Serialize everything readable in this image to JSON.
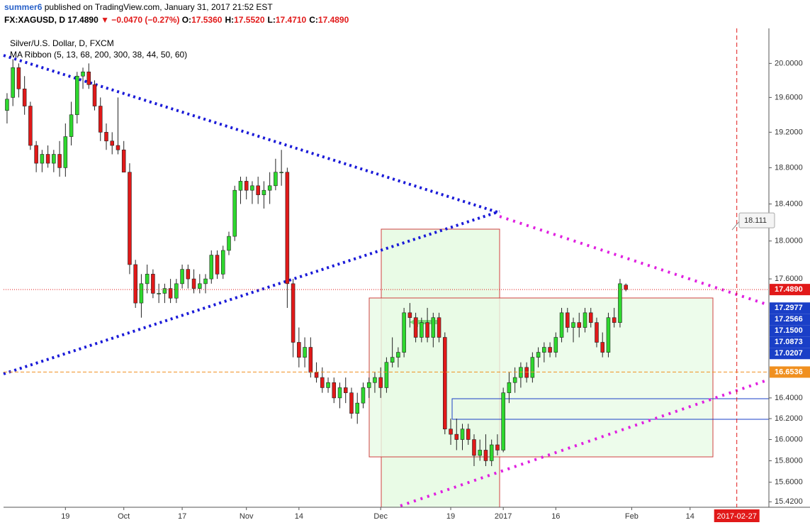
{
  "header": {
    "author": "summer6",
    "published": "published on TradingView.com, January 31, 2017 21:52 EST",
    "symbol": "FX:XAGUSD, D",
    "last": "17.4890",
    "change": "▼ −0.0470 (−0.27%)",
    "ohlc": [
      {
        "key": "O:",
        "value": "17.5360"
      },
      {
        "key": "H:",
        "value": "17.5520"
      },
      {
        "key": "L:",
        "value": "17.4710"
      },
      {
        "key": "C:",
        "value": "17.4890"
      }
    ]
  },
  "chart_data": {
    "type": "candlestick",
    "title": "Silver/U.S. Dollar, D, FXCM",
    "indicator": "MA Ribbon (5, 13, 68, 200, 300, 38, 44, 50, 60)",
    "up_color": "#2ed82e",
    "down_color": "#e11919",
    "log_scale": true,
    "grid": false,
    "xlim": [
      -0.6,
      130.5
    ],
    "ylim": [
      15.37,
      20.42
    ],
    "xticks": [
      {
        "value": 10,
        "label": "19"
      },
      {
        "value": 20,
        "label": "Oct"
      },
      {
        "value": 30,
        "label": "17"
      },
      {
        "value": 41,
        "label": "Nov"
      },
      {
        "value": 50,
        "label": "14"
      },
      {
        "value": 64,
        "label": "Dec"
      },
      {
        "value": 76,
        "label": "19"
      },
      {
        "value": 85,
        "label": "2017"
      },
      {
        "value": 94,
        "label": "16"
      },
      {
        "value": 107,
        "label": "Feb"
      },
      {
        "value": 117,
        "label": "14"
      }
    ],
    "yticks": [
      {
        "value": 20.0,
        "label": "20.0000"
      },
      {
        "value": 19.6,
        "label": "19.6000"
      },
      {
        "value": 19.2,
        "label": "19.2000"
      },
      {
        "value": 18.8,
        "label": "18.8000"
      },
      {
        "value": 18.4,
        "label": "18.4000"
      },
      {
        "value": 18.0,
        "label": "18.0000"
      },
      {
        "value": 17.6,
        "label": "17.6000"
      },
      {
        "value": 16.4,
        "label": "16.4000"
      },
      {
        "value": 16.2,
        "label": "16.2000"
      },
      {
        "value": 16.0,
        "label": "16.0000"
      },
      {
        "value": 15.8,
        "label": "15.8000"
      },
      {
        "value": 15.6,
        "label": "15.6000"
      },
      {
        "value": 15.42,
        "label": "15.4200"
      }
    ],
    "open": [
      19.45,
      19.6,
      19.95,
      19.7,
      19.5,
      19.05,
      18.85,
      18.95,
      18.85,
      18.95,
      18.8,
      19.15,
      19.4,
      19.85,
      19.9,
      19.75,
      19.5,
      19.2,
      19.1,
      19.05,
      19.0,
      18.75,
      17.75,
      17.35,
      17.55,
      17.65,
      17.45,
      17.45,
      17.5,
      17.4,
      17.55,
      17.7,
      17.6,
      17.5,
      17.55,
      17.6,
      17.85,
      17.65,
      17.9,
      18.05,
      18.55,
      18.65,
      18.55,
      18.6,
      18.5,
      18.55,
      18.6,
      18.75,
      18.75,
      17.55,
      16.95,
      16.8,
      16.9,
      16.65,
      16.6,
      16.5,
      16.55,
      16.4,
      16.5,
      16.45,
      16.25,
      16.35,
      16.5,
      16.55,
      16.6,
      16.5,
      16.75,
      16.8,
      16.85,
      17.25,
      17.2,
      17.0,
      17.15,
      17.0,
      17.2,
      17.0,
      16.1,
      16.05,
      16.0,
      16.1,
      16.0,
      15.85,
      15.9,
      15.8,
      15.95,
      15.9,
      16.45,
      16.55,
      16.6,
      16.7,
      16.6,
      16.8,
      16.85,
      16.9,
      16.85,
      17.0,
      17.25,
      17.1,
      17.15,
      17.1,
      17.25,
      17.15,
      16.95,
      16.85,
      17.2,
      17.15,
      17.536
    ],
    "high": [
      19.65,
      20.05,
      20.0,
      19.85,
      19.55,
      19.1,
      19.0,
      19.05,
      19.0,
      19.1,
      19.3,
      19.55,
      19.9,
      19.95,
      20.0,
      19.8,
      19.6,
      19.3,
      19.2,
      19.6,
      19.1,
      18.85,
      17.8,
      17.65,
      17.75,
      17.7,
      17.55,
      17.55,
      17.6,
      17.6,
      17.75,
      17.75,
      17.7,
      17.65,
      17.65,
      17.9,
      17.9,
      17.95,
      18.1,
      18.6,
      18.7,
      18.7,
      18.65,
      18.7,
      18.65,
      18.75,
      18.9,
      19.0,
      18.8,
      17.6,
      17.1,
      17.0,
      17.0,
      16.75,
      16.7,
      16.6,
      16.6,
      16.55,
      16.6,
      16.5,
      16.45,
      16.55,
      16.6,
      16.65,
      16.7,
      16.8,
      17.0,
      16.9,
      17.3,
      17.35,
      17.25,
      17.2,
      17.3,
      17.25,
      17.25,
      17.05,
      16.2,
      16.2,
      16.15,
      16.15,
      16.05,
      16.0,
      16.05,
      16.0,
      16.05,
      16.5,
      16.65,
      16.7,
      16.75,
      16.75,
      16.85,
      16.9,
      16.95,
      16.95,
      17.05,
      17.3,
      17.3,
      17.2,
      17.25,
      17.3,
      17.3,
      17.2,
      17.05,
      17.25,
      17.3,
      17.6,
      17.552
    ],
    "low": [
      19.3,
      19.5,
      19.6,
      19.4,
      19.0,
      18.75,
      18.75,
      18.8,
      18.75,
      18.7,
      18.7,
      19.05,
      19.3,
      19.7,
      19.7,
      19.45,
      19.1,
      19.0,
      18.95,
      18.95,
      18.75,
      17.65,
      17.3,
      17.2,
      17.45,
      17.4,
      17.35,
      17.35,
      17.35,
      17.35,
      17.5,
      17.5,
      17.45,
      17.45,
      17.45,
      17.55,
      17.6,
      17.6,
      17.85,
      18.0,
      18.4,
      18.45,
      18.4,
      18.4,
      18.35,
      18.4,
      18.55,
      18.6,
      17.3,
      16.8,
      16.7,
      16.7,
      16.6,
      16.55,
      16.45,
      16.45,
      16.35,
      16.3,
      16.35,
      16.2,
      16.15,
      16.3,
      16.4,
      16.45,
      16.4,
      16.45,
      16.7,
      16.7,
      16.8,
      17.1,
      16.95,
      16.95,
      16.95,
      16.9,
      16.95,
      16.05,
      15.95,
      15.9,
      15.9,
      15.95,
      15.75,
      15.8,
      15.75,
      15.75,
      15.85,
      15.88,
      16.35,
      16.45,
      16.5,
      16.55,
      16.55,
      16.7,
      16.75,
      16.8,
      16.8,
      16.95,
      17.05,
      16.95,
      17.0,
      17.05,
      17.1,
      16.9,
      16.8,
      16.8,
      17.1,
      17.1,
      17.471
    ],
    "close": [
      19.58,
      19.95,
      19.7,
      19.5,
      19.05,
      18.85,
      18.95,
      18.85,
      18.95,
      18.8,
      19.15,
      19.4,
      19.85,
      19.9,
      19.75,
      19.5,
      19.2,
      19.1,
      19.05,
      19.0,
      18.75,
      17.75,
      17.35,
      17.55,
      17.65,
      17.45,
      17.45,
      17.5,
      17.4,
      17.55,
      17.7,
      17.6,
      17.5,
      17.55,
      17.6,
      17.85,
      17.65,
      17.9,
      18.05,
      18.55,
      18.65,
      18.55,
      18.6,
      18.5,
      18.55,
      18.6,
      18.75,
      18.75,
      17.55,
      16.95,
      16.8,
      16.9,
      16.65,
      16.6,
      16.5,
      16.55,
      16.4,
      16.5,
      16.45,
      16.25,
      16.35,
      16.5,
      16.55,
      16.6,
      16.5,
      16.75,
      16.8,
      16.85,
      17.25,
      17.2,
      17.0,
      17.15,
      17.0,
      17.2,
      17.0,
      16.1,
      16.05,
      16.0,
      16.1,
      16.0,
      15.85,
      15.9,
      15.8,
      15.95,
      15.9,
      16.45,
      16.55,
      16.6,
      16.7,
      16.6,
      16.8,
      16.85,
      16.9,
      16.85,
      17.0,
      17.25,
      17.1,
      17.15,
      17.1,
      17.25,
      17.15,
      16.95,
      16.85,
      17.2,
      17.15,
      17.55,
      17.489
    ],
    "price_labels": [
      {
        "value": 17.489,
        "label": "17.4890",
        "color": "#e11919",
        "line": "dotted"
      },
      {
        "value": 17.2977,
        "label": "17.2977",
        "color": "#1a3fc7"
      },
      {
        "value": 17.2566,
        "label": "17.2566",
        "color": "#1a3fc7"
      },
      {
        "value": 17.15,
        "label": "17.1500",
        "color": "#1a3fc7"
      },
      {
        "value": 17.0873,
        "label": "17.0873",
        "color": "#1a3fc7"
      },
      {
        "value": 17.0207,
        "label": "17.0207",
        "color": "#1a3fc7"
      },
      {
        "value": 16.6536,
        "label": "16.6536",
        "color": "#f09020",
        "line": "dashed"
      }
    ],
    "callout": {
      "value": 18.111,
      "label": "18.111"
    },
    "date_marker": {
      "value": 125,
      "label": "2017-02-27",
      "color": "#e11919"
    }
  }
}
